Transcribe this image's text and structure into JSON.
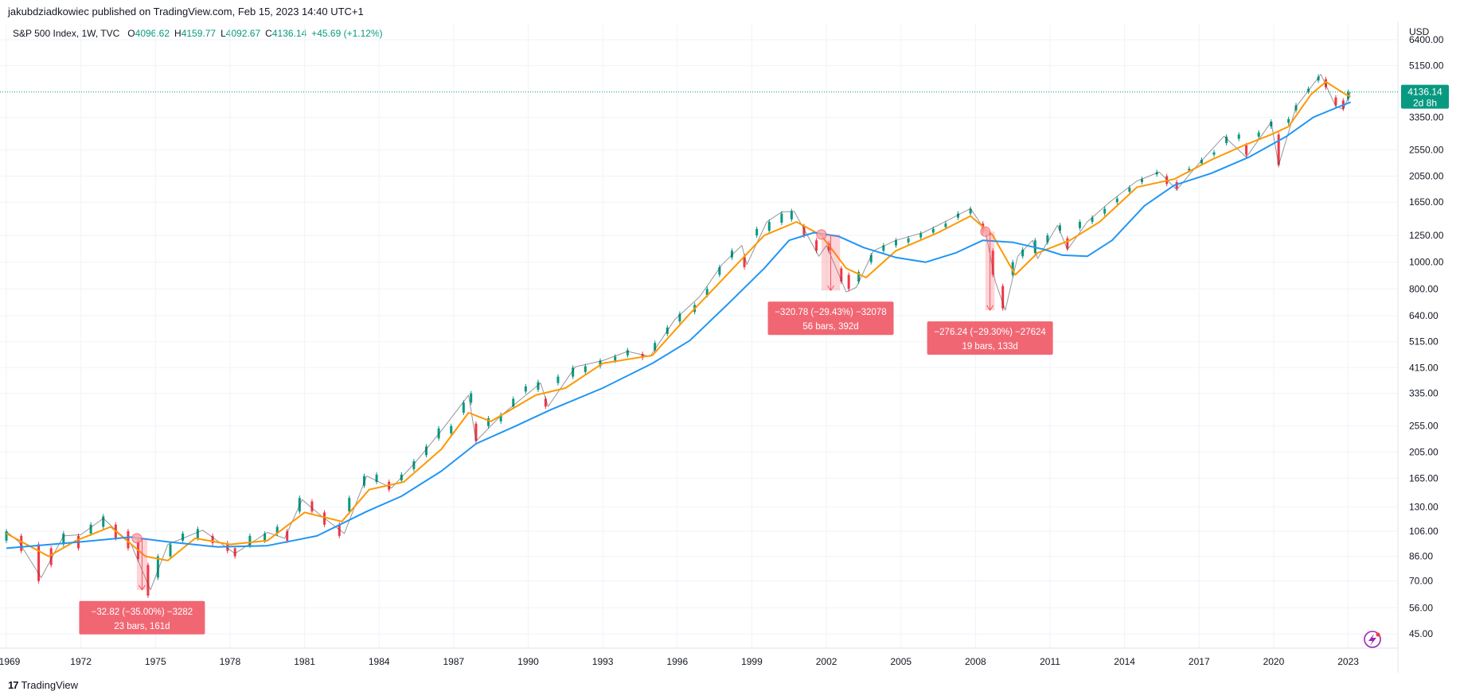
{
  "byline": "jakubdziadkowiec published on TradingView.com, Feb 15, 2023 14:40 UTC+1",
  "legend": {
    "symbol": "S&P 500 Index, 1W, TVC",
    "open_label": "O",
    "open": "4096.62",
    "high_label": "H",
    "high": "4159.77",
    "low_label": "L",
    "low": "4092.67",
    "close_label": "C",
    "close": "4136.14",
    "change": "+45.69 (+1.12%)"
  },
  "footer_brand": "TradingView",
  "footer_logo": "17",
  "currency": "USD",
  "last_price_badge": {
    "price": "4136.14",
    "countdown": "2d 8h"
  },
  "colors": {
    "up": "#089981",
    "down": "#f23645",
    "ma_fast": "#ff9800",
    "ma_slow": "#2196f3",
    "measure_fill": "#f7525f",
    "badge": "#089981"
  },
  "chart_data": {
    "type": "line",
    "title": "S&P 500 Index, 1W, TVC",
    "y_scale": "log",
    "ylim": [
      40,
      7300
    ],
    "xlim": [
      1969.0,
      2025.0
    ],
    "y_ticks": [
      "6400.00",
      "5150.00",
      "3350.00",
      "2550.00",
      "2050.00",
      "1650.00",
      "1250.00",
      "1000.00",
      "800.00",
      "640.00",
      "515.00",
      "415.00",
      "335.00",
      "255.00",
      "205.00",
      "165.00",
      "130.00",
      "106.00",
      "86.00",
      "70.00",
      "56.00",
      "45.00"
    ],
    "x_ticks": [
      "1969",
      "1972",
      "1975",
      "1978",
      "1981",
      "1984",
      "1987",
      "1990",
      "1993",
      "1996",
      "1999",
      "2002",
      "2005",
      "2008",
      "2011",
      "2014",
      "2017",
      "2020",
      "2023"
    ],
    "grid": true,
    "series": [
      {
        "name": "",
        "values": [
          [
            1969.0,
            106
          ],
          [
            1969.5,
            97
          ],
          [
            1970.4,
            72
          ],
          [
            1971.3,
            102
          ],
          [
            1972.0,
            103
          ],
          [
            1972.9,
            118
          ],
          [
            1973.5,
            105
          ],
          [
            1974.0,
            96
          ],
          [
            1974.8,
            65
          ],
          [
            1975.5,
            95
          ],
          [
            1976.9,
            107
          ],
          [
            1978.2,
            88
          ],
          [
            1979.5,
            105
          ],
          [
            1980.2,
            100
          ],
          [
            1980.9,
            138
          ],
          [
            1981.7,
            120
          ],
          [
            1982.6,
            104
          ],
          [
            1983.5,
            168
          ],
          [
            1984.5,
            152
          ],
          [
            1985.5,
            190
          ],
          [
            1986.5,
            245
          ],
          [
            1987.6,
            330
          ],
          [
            1987.9,
            225
          ],
          [
            1988.9,
            278
          ],
          [
            1990.5,
            365
          ],
          [
            1990.8,
            300
          ],
          [
            1991.9,
            418
          ],
          [
            1993.0,
            440
          ],
          [
            1994.0,
            475
          ],
          [
            1994.9,
            455
          ],
          [
            1995.9,
            620
          ],
          [
            1996.9,
            750
          ],
          [
            1997.8,
            980
          ],
          [
            1998.6,
            1150
          ],
          [
            1998.8,
            980
          ],
          [
            1999.6,
            1400
          ],
          [
            2000.2,
            1520
          ],
          [
            2000.7,
            1530
          ],
          [
            2001.7,
            1050
          ],
          [
            2002.0,
            1150
          ],
          [
            2002.8,
            780
          ],
          [
            2003.2,
            810
          ],
          [
            2003.9,
            1100
          ],
          [
            2004.8,
            1200
          ],
          [
            2005.9,
            1280
          ],
          [
            2006.9,
            1420
          ],
          [
            2007.8,
            1565
          ],
          [
            2008.4,
            1300
          ],
          [
            2008.8,
            850
          ],
          [
            2009.2,
            670
          ],
          [
            2009.7,
            1050
          ],
          [
            2010.3,
            1200
          ],
          [
            2010.5,
            1030
          ],
          [
            2011.3,
            1360
          ],
          [
            2011.7,
            1110
          ],
          [
            2012.5,
            1400
          ],
          [
            2013.4,
            1650
          ],
          [
            2014.5,
            1970
          ],
          [
            2015.4,
            2120
          ],
          [
            2016.1,
            1830
          ],
          [
            2016.9,
            2230
          ],
          [
            2018.0,
            2860
          ],
          [
            2018.9,
            2400
          ],
          [
            2019.9,
            3220
          ],
          [
            2020.2,
            2240
          ],
          [
            2020.9,
            3650
          ],
          [
            2021.9,
            4790
          ],
          [
            2022.5,
            3670
          ],
          [
            2022.8,
            3580
          ],
          [
            2023.1,
            4136
          ]
        ]
      },
      {
        "name": "",
        "values": [
          [
            1969.0,
            104
          ],
          [
            1970.7,
            86
          ],
          [
            1971.8,
            98
          ],
          [
            1973.2,
            110
          ],
          [
            1974.6,
            86
          ],
          [
            1975.5,
            83
          ],
          [
            1976.6,
            100
          ],
          [
            1978.0,
            95
          ],
          [
            1979.5,
            98
          ],
          [
            1981.0,
            124
          ],
          [
            1982.5,
            115
          ],
          [
            1983.6,
            150
          ],
          [
            1985.0,
            160
          ],
          [
            1986.5,
            210
          ],
          [
            1987.6,
            285
          ],
          [
            1988.5,
            265
          ],
          [
            1990.3,
            330
          ],
          [
            1991.5,
            350
          ],
          [
            1993.0,
            430
          ],
          [
            1995.0,
            460
          ],
          [
            1996.5,
            650
          ],
          [
            1998.0,
            900
          ],
          [
            1999.5,
            1250
          ],
          [
            2000.8,
            1400
          ],
          [
            2001.8,
            1250
          ],
          [
            2002.8,
            950
          ],
          [
            2003.6,
            880
          ],
          [
            2004.8,
            1100
          ],
          [
            2006.5,
            1280
          ],
          [
            2007.8,
            1470
          ],
          [
            2008.7,
            1250
          ],
          [
            2009.6,
            900
          ],
          [
            2010.5,
            1080
          ],
          [
            2011.8,
            1200
          ],
          [
            2013.0,
            1400
          ],
          [
            2014.5,
            1870
          ],
          [
            2016.0,
            2000
          ],
          [
            2017.5,
            2350
          ],
          [
            2018.8,
            2650
          ],
          [
            2019.9,
            2900
          ],
          [
            2020.6,
            3100
          ],
          [
            2021.5,
            4050
          ],
          [
            2022.1,
            4500
          ],
          [
            2022.9,
            4050
          ],
          [
            2023.1,
            3980
          ]
        ]
      },
      {
        "name": "",
        "values": [
          [
            1969.0,
            92
          ],
          [
            1972.0,
            97
          ],
          [
            1974.0,
            101
          ],
          [
            1975.5,
            97
          ],
          [
            1977.5,
            93
          ],
          [
            1979.5,
            94
          ],
          [
            1981.5,
            102
          ],
          [
            1983.5,
            125
          ],
          [
            1984.9,
            142
          ],
          [
            1986.5,
            175
          ],
          [
            1987.9,
            220
          ],
          [
            1989.5,
            255
          ],
          [
            1990.9,
            292
          ],
          [
            1993.0,
            350
          ],
          [
            1995.0,
            430
          ],
          [
            1996.5,
            520
          ],
          [
            1998.0,
            700
          ],
          [
            1999.5,
            950
          ],
          [
            2000.5,
            1200
          ],
          [
            2001.5,
            1280
          ],
          [
            2002.5,
            1240
          ],
          [
            2003.5,
            1130
          ],
          [
            2004.8,
            1040
          ],
          [
            2006.0,
            1000
          ],
          [
            2007.2,
            1080
          ],
          [
            2008.3,
            1200
          ],
          [
            2009.5,
            1180
          ],
          [
            2010.8,
            1110
          ],
          [
            2011.5,
            1060
          ],
          [
            2012.5,
            1050
          ],
          [
            2013.5,
            1200
          ],
          [
            2014.8,
            1600
          ],
          [
            2016.0,
            1900
          ],
          [
            2017.5,
            2100
          ],
          [
            2019.0,
            2400
          ],
          [
            2020.5,
            2850
          ],
          [
            2021.6,
            3350
          ],
          [
            2022.6,
            3650
          ],
          [
            2023.1,
            3800
          ]
        ]
      }
    ],
    "candles": [
      [
        1969.0,
        98,
        106
      ],
      [
        1969.6,
        90,
        102
      ],
      [
        1970.3,
        70,
        95
      ],
      [
        1970.8,
        80,
        92
      ],
      [
        1971.3,
        95,
        104
      ],
      [
        1971.9,
        92,
        102
      ],
      [
        1972.4,
        104,
        112
      ],
      [
        1972.9,
        110,
        120
      ],
      [
        1973.4,
        100,
        112
      ],
      [
        1973.9,
        92,
        106
      ],
      [
        1974.3,
        84,
        98
      ],
      [
        1974.7,
        62,
        80
      ],
      [
        1975.1,
        72,
        86
      ],
      [
        1975.6,
        86,
        95
      ],
      [
        1976.1,
        98,
        104
      ],
      [
        1976.7,
        100,
        108
      ],
      [
        1977.3,
        96,
        102
      ],
      [
        1977.9,
        90,
        96
      ],
      [
        1978.2,
        86,
        92
      ],
      [
        1978.8,
        94,
        102
      ],
      [
        1979.4,
        98,
        104
      ],
      [
        1979.9,
        104,
        110
      ],
      [
        1980.3,
        98,
        106
      ],
      [
        1980.8,
        125,
        140
      ],
      [
        1981.3,
        125,
        136
      ],
      [
        1981.8,
        112,
        124
      ],
      [
        1982.4,
        102,
        112
      ],
      [
        1982.8,
        125,
        140
      ],
      [
        1983.4,
        155,
        168
      ],
      [
        1983.9,
        160,
        170
      ],
      [
        1984.4,
        150,
        160
      ],
      [
        1984.9,
        162,
        170
      ],
      [
        1985.4,
        178,
        190
      ],
      [
        1985.9,
        200,
        215
      ],
      [
        1986.4,
        230,
        250
      ],
      [
        1986.9,
        240,
        255
      ],
      [
        1987.4,
        285,
        310
      ],
      [
        1987.7,
        310,
        335
      ],
      [
        1987.9,
        225,
        260
      ],
      [
        1988.4,
        255,
        272
      ],
      [
        1988.9,
        265,
        280
      ],
      [
        1989.4,
        300,
        320
      ],
      [
        1989.9,
        340,
        355
      ],
      [
        1990.4,
        345,
        368
      ],
      [
        1990.7,
        300,
        320
      ],
      [
        1991.2,
        365,
        385
      ],
      [
        1991.8,
        385,
        415
      ],
      [
        1992.3,
        400,
        420
      ],
      [
        1992.9,
        420,
        440
      ],
      [
        1993.5,
        440,
        455
      ],
      [
        1994.0,
        460,
        480
      ],
      [
        1994.6,
        450,
        465
      ],
      [
        1995.1,
        480,
        510
      ],
      [
        1995.6,
        550,
        580
      ],
      [
        1996.1,
        610,
        650
      ],
      [
        1996.7,
        660,
        700
      ],
      [
        1997.2,
        760,
        800
      ],
      [
        1997.7,
        900,
        960
      ],
      [
        1998.2,
        1040,
        1100
      ],
      [
        1998.7,
        960,
        1050
      ],
      [
        1999.2,
        1250,
        1320
      ],
      [
        1999.7,
        1300,
        1400
      ],
      [
        2000.2,
        1390,
        1500
      ],
      [
        2000.6,
        1430,
        1530
      ],
      [
        2001.1,
        1250,
        1350
      ],
      [
        2001.6,
        1100,
        1200
      ],
      [
        2002.1,
        1100,
        1170
      ],
      [
        2002.6,
        850,
        950
      ],
      [
        2002.9,
        800,
        900
      ],
      [
        2003.3,
        850,
        920
      ],
      [
        2003.8,
        1000,
        1060
      ],
      [
        2004.3,
        1100,
        1150
      ],
      [
        2004.8,
        1150,
        1200
      ],
      [
        2005.3,
        1180,
        1220
      ],
      [
        2005.8,
        1230,
        1270
      ],
      [
        2006.3,
        1280,
        1320
      ],
      [
        2006.8,
        1340,
        1380
      ],
      [
        2007.3,
        1450,
        1500
      ],
      [
        2007.8,
        1500,
        1560
      ],
      [
        2008.3,
        1280,
        1380
      ],
      [
        2008.7,
        900,
        1100
      ],
      [
        2009.1,
        680,
        820
      ],
      [
        2009.5,
        900,
        1000
      ],
      [
        2009.9,
        1050,
        1110
      ],
      [
        2010.4,
        1080,
        1200
      ],
      [
        2010.9,
        1180,
        1250
      ],
      [
        2011.4,
        1300,
        1360
      ],
      [
        2011.7,
        1120,
        1220
      ],
      [
        2012.2,
        1330,
        1400
      ],
      [
        2012.7,
        1400,
        1450
      ],
      [
        2013.2,
        1500,
        1560
      ],
      [
        2013.7,
        1650,
        1700
      ],
      [
        2014.2,
        1800,
        1860
      ],
      [
        2014.7,
        1950,
        2000
      ],
      [
        2015.3,
        2080,
        2120
      ],
      [
        2015.7,
        1920,
        2050
      ],
      [
        2016.1,
        1850,
        1950
      ],
      [
        2016.6,
        2150,
        2180
      ],
      [
        2017.1,
        2280,
        2350
      ],
      [
        2017.6,
        2450,
        2500
      ],
      [
        2018.1,
        2700,
        2850
      ],
      [
        2018.6,
        2800,
        2900
      ],
      [
        2018.9,
        2450,
        2650
      ],
      [
        2019.4,
        2850,
        2950
      ],
      [
        2019.9,
        3100,
        3230
      ],
      [
        2020.2,
        2250,
        2900
      ],
      [
        2020.6,
        3200,
        3300
      ],
      [
        2020.9,
        3550,
        3700
      ],
      [
        2021.4,
        4150,
        4250
      ],
      [
        2021.8,
        4550,
        4700
      ],
      [
        2022.1,
        4300,
        4600
      ],
      [
        2022.5,
        3700,
        3950
      ],
      [
        2022.8,
        3600,
        3850
      ],
      [
        2023.0,
        3900,
        4136
      ]
    ],
    "annotations": [
      {
        "text1": "−32.82 (−35.00%) −3282",
        "text2": "23 bars, 161d",
        "x0": 1974.25,
        "x1": 1974.67,
        "y0": 100,
        "y1": 65
      },
      {
        "text1": "−320.78 (−29.43%) −32078",
        "text2": "56 bars, 392d",
        "x0": 2001.8,
        "x1": 2002.55,
        "y0": 1260,
        "y1": 790
      },
      {
        "text1": "−276.24 (−29.30%) −27624",
        "text2": "19 bars, 133d",
        "x0": 2008.4,
        "x1": 2008.77,
        "y0": 1290,
        "y1": 670
      }
    ]
  }
}
